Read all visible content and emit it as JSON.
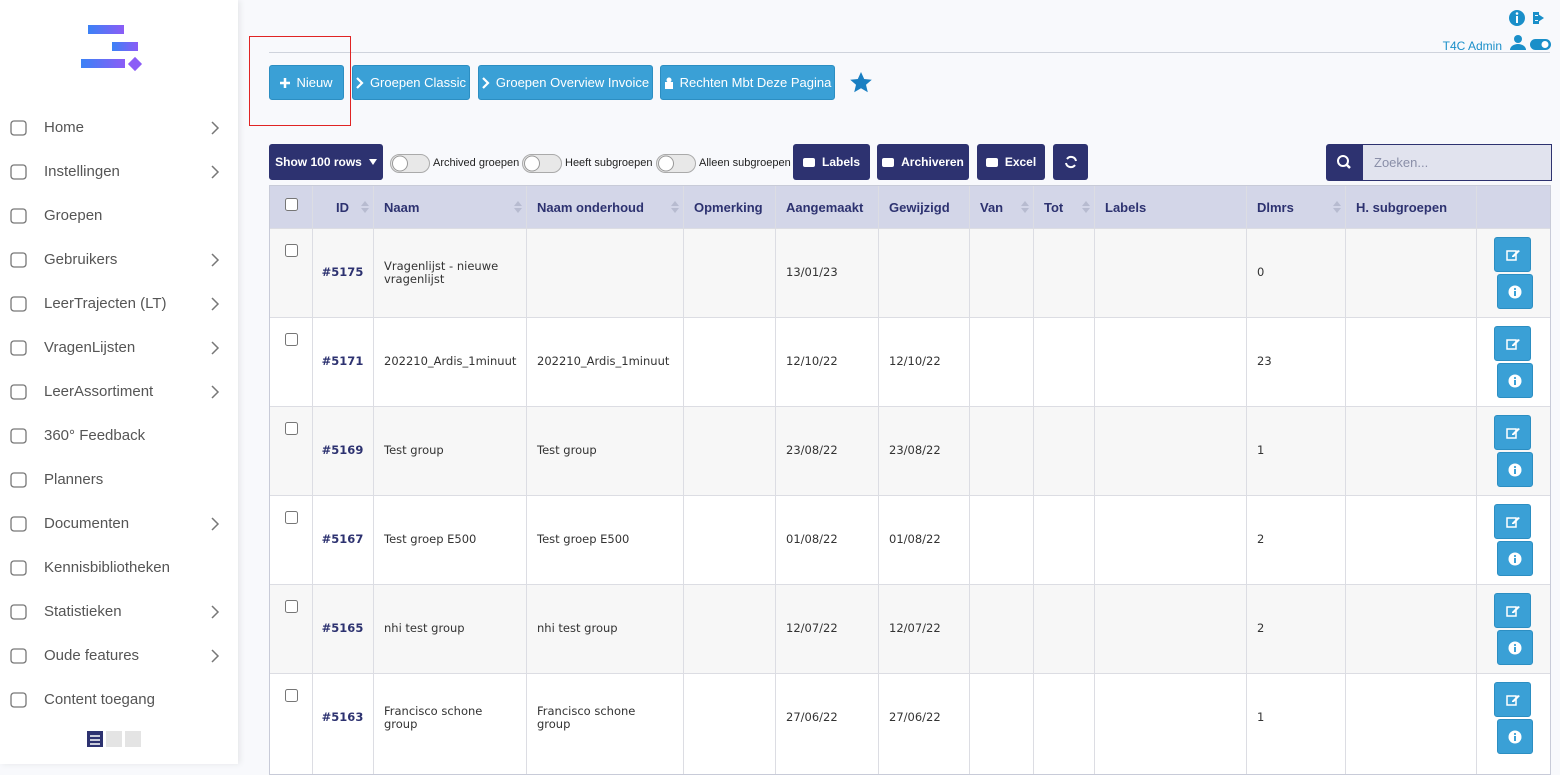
{
  "sidebar": {
    "items": [
      {
        "label": "Home",
        "submenu": true
      },
      {
        "label": "Instellingen",
        "submenu": true
      },
      {
        "label": "Groepen",
        "submenu": false
      },
      {
        "label": "Gebruikers",
        "submenu": true
      },
      {
        "label": "LeerTrajecten (LT)",
        "submenu": true
      },
      {
        "label": "VragenLijsten",
        "submenu": true
      },
      {
        "label": "LeerAssortiment",
        "submenu": true
      },
      {
        "label": "360° Feedback",
        "submenu": false
      },
      {
        "label": "Planners",
        "submenu": false
      },
      {
        "label": "Documenten",
        "submenu": true
      },
      {
        "label": "Kennisbibliotheken",
        "submenu": false
      },
      {
        "label": "Statistieken",
        "submenu": true
      },
      {
        "label": "Oude features",
        "submenu": true
      },
      {
        "label": "Content toegang",
        "submenu": false
      }
    ]
  },
  "header": {
    "user": "T4C Admin"
  },
  "toolbar": {
    "buttons": [
      "Nieuw",
      "Groepen Classic",
      "Groepen Overview Invoice",
      "Rechten Mbt Deze Pagina"
    ]
  },
  "controls": {
    "rows": "Show 100 rows",
    "toggles": [
      "Archived groepen",
      "Heeft subgroepen",
      "Alleen subgroepen"
    ],
    "buttons": [
      "Labels",
      "Archiveren",
      "Excel"
    ],
    "search_placeholder": "Zoeken..."
  },
  "table": {
    "columns": [
      "ID",
      "Naam",
      "Naam onderhoud",
      "Opmerking",
      "Aangemaakt",
      "Gewijzigd",
      "Van",
      "Tot",
      "Labels",
      "Dlmrs",
      "H. subgroepen"
    ],
    "rows": [
      {
        "id": "#5175",
        "naam": "Vragenlijst - nieuwe vragenlijst",
        "aangemaakt": "13/01/23",
        "dlmrs": 0
      },
      {
        "id": "#5171",
        "naam": "202210_Ardis_1minuut",
        "onderhoud": "202210_Ardis_1minuut",
        "aangemaakt": "12/10/22",
        "gewijzigd": "12/10/22",
        "dlmrs": 23
      },
      {
        "id": "#5169",
        "naam": "Test group",
        "onderhoud": "Test group",
        "aangemaakt": "23/08/22",
        "gewijzigd": "23/08/22",
        "dlmrs": 1
      },
      {
        "id": "#5167",
        "naam": "Test groep E500",
        "onderhoud": "Test groep E500",
        "aangemaakt": "01/08/22",
        "gewijzigd": "01/08/22",
        "dlmrs": 2
      },
      {
        "id": "#5165",
        "naam": "nhi test group",
        "onderhoud": "nhi test group",
        "aangemaakt": "12/07/22",
        "gewijzigd": "12/07/22",
        "dlmrs": 2
      },
      {
        "id": "#5163",
        "naam": "Francisco schone group",
        "onderhoud": "Francisco schone group",
        "aangemaakt": "27/06/22",
        "gewijzigd": "27/06/22",
        "dlmrs": 1
      }
    ]
  }
}
